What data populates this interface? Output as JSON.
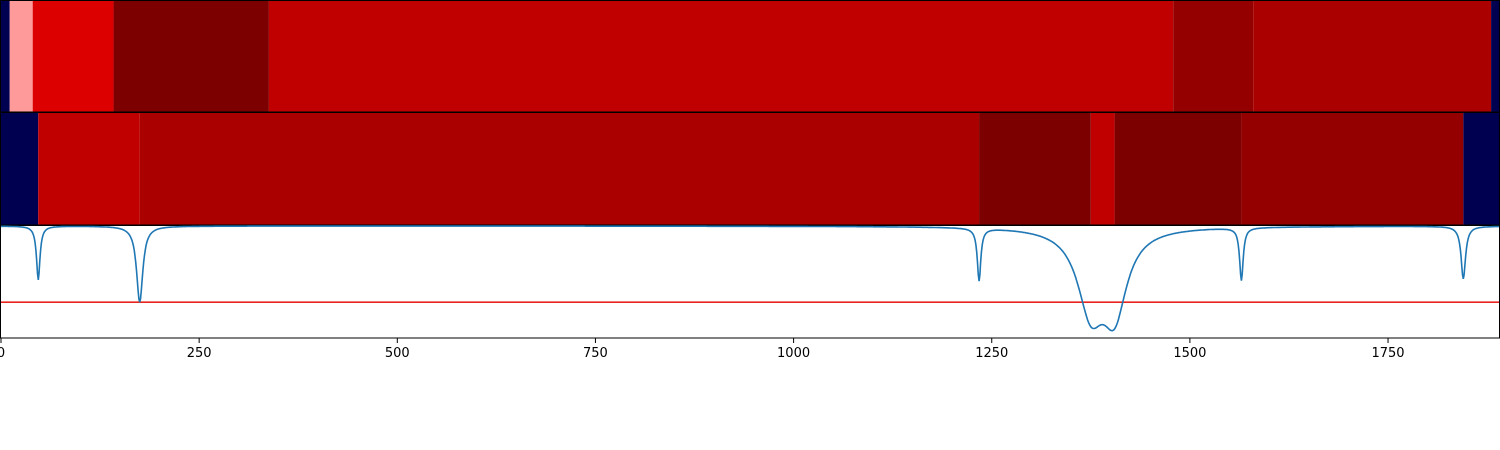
{
  "chart_data": [
    {
      "type": "heatmap",
      "x_range": [
        0,
        1890
      ],
      "segments": [
        {
          "start": 0,
          "end": 22,
          "color": "#000050"
        },
        {
          "start": 22,
          "end": 80,
          "color": "#ff9a9a"
        },
        {
          "start": 80,
          "end": 284,
          "color": "#dd0000"
        },
        {
          "start": 284,
          "end": 676,
          "color": "#7d0000"
        },
        {
          "start": 676,
          "end": 2958,
          "color": "#c00000"
        },
        {
          "start": 2958,
          "end": 3160,
          "color": "#940000"
        },
        {
          "start": 3160,
          "end": 3760,
          "color": "#aa0000"
        },
        {
          "start": 3760,
          "end": 3800,
          "color": "#000050"
        }
      ],
      "segment_units": "x_range scaled by 2"
    },
    {
      "type": "heatmap",
      "x_range": [
        0,
        1890
      ],
      "segments": [
        {
          "start": 0,
          "end": 47,
          "color": "#000050"
        },
        {
          "start": 47,
          "end": 175,
          "color": "#c00000"
        },
        {
          "start": 175,
          "end": 1234,
          "color": "#aa0000"
        },
        {
          "start": 1234,
          "end": 1375,
          "color": "#7d0000"
        },
        {
          "start": 1375,
          "end": 1405,
          "color": "#c00000"
        },
        {
          "start": 1405,
          "end": 1565,
          "color": "#7d0000"
        },
        {
          "start": 1565,
          "end": 1845,
          "color": "#940000"
        },
        {
          "start": 1845,
          "end": 1890,
          "color": "#000050"
        }
      ]
    },
    {
      "type": "line",
      "xlim": [
        0,
        1890
      ],
      "ylim": [
        0,
        1
      ],
      "threshold": {
        "y": 0.32,
        "color": "#e8261f"
      },
      "line_color": "#1f77b4",
      "dips": [
        {
          "center": 47,
          "depth": 0.48,
          "width": 4
        },
        {
          "center": 175,
          "depth": 0.68,
          "width": 7
        },
        {
          "center": 1234,
          "depth": 0.47,
          "width": 4
        },
        {
          "center": 1375,
          "depth": 0.7,
          "width": 30
        },
        {
          "center": 1405,
          "depth": 0.7,
          "width": 28
        },
        {
          "center": 1565,
          "depth": 0.47,
          "width": 4
        },
        {
          "center": 1845,
          "depth": 0.47,
          "width": 5
        }
      ],
      "xticks": [
        {
          "value": 0,
          "label": "0"
        },
        {
          "value": 250,
          "label": "250"
        },
        {
          "value": 500,
          "label": "500"
        },
        {
          "value": 750,
          "label": "750"
        },
        {
          "value": 1000,
          "label": "1000"
        },
        {
          "value": 1250,
          "label": "1250"
        },
        {
          "value": 1500,
          "label": "1500"
        },
        {
          "value": 1750,
          "label": "1750"
        }
      ]
    }
  ]
}
